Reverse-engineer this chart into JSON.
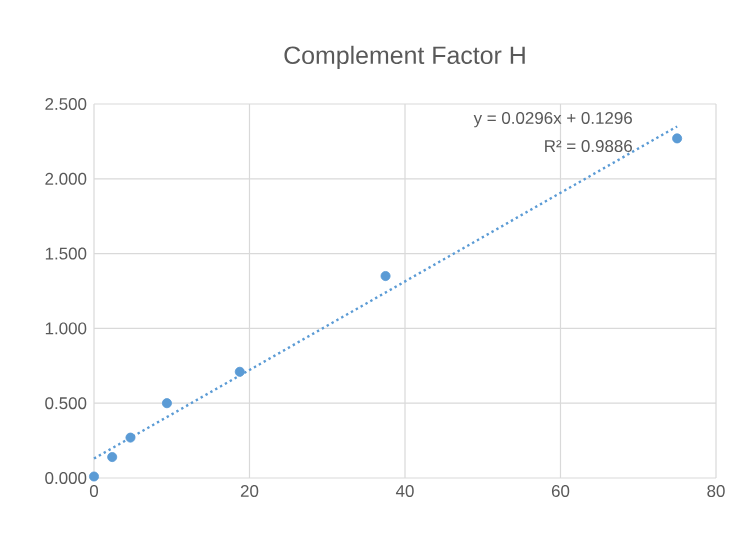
{
  "chart_data": {
    "type": "scatter",
    "title": "Complement Factor H",
    "xlim": [
      0,
      80
    ],
    "ylim": [
      0,
      2.5
    ],
    "xticks": [
      0,
      20,
      40,
      60,
      80
    ],
    "yticks": [
      {
        "value": 0,
        "label": "0.000"
      },
      {
        "value": 0.5,
        "label": "0.500"
      },
      {
        "value": 1,
        "label": "1.000"
      },
      {
        "value": 1.5,
        "label": "1.500"
      },
      {
        "value": 2,
        "label": "2.000"
      },
      {
        "value": 2.5,
        "label": "2.500"
      }
    ],
    "grid": true,
    "annotations": [
      "y = 0.0296x + 0.1296",
      "R² = 0.9886"
    ],
    "series": [
      {
        "color": "#5b9bd5",
        "marker": "circle",
        "x": [
          0,
          2.34,
          4.69,
          9.38,
          18.75,
          37.5,
          75
        ],
        "values": [
          0.01,
          0.14,
          0.27,
          0.5,
          0.71,
          1.35,
          2.27
        ]
      },
      {
        "type": "line",
        "color": "#5b9bd5",
        "marker": "none",
        "line_style": "dotted",
        "x": [
          0,
          75
        ],
        "values": [
          0.13,
          2.35
        ]
      }
    ]
  }
}
